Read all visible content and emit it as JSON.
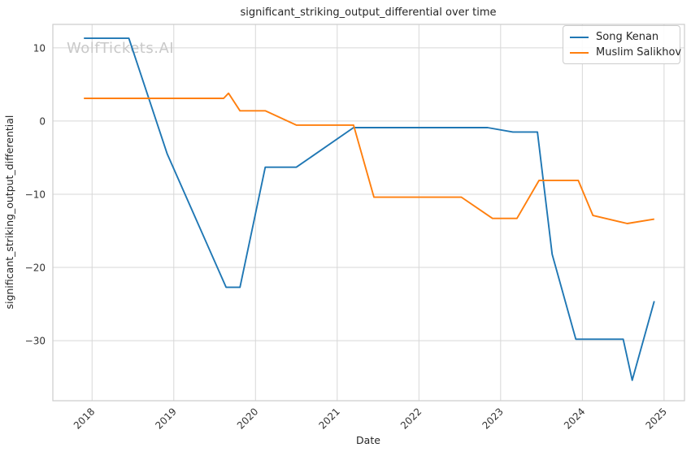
{
  "watermark": "WolfTickets.AI",
  "chart_data": {
    "type": "line",
    "title": "significant_striking_output_differential over time",
    "xlabel": "Date",
    "ylabel": "significant_striking_output_differential",
    "grid": true,
    "legend_position": "upper right",
    "xlim": [
      2017.52,
      2025.25
    ],
    "ylim": [
      -38.2,
      13.2
    ],
    "x_ticks": {
      "values": [
        2018,
        2019,
        2020,
        2021,
        2022,
        2023,
        2024,
        2025
      ],
      "labels": [
        "2018",
        "2019",
        "2020",
        "2021",
        "2022",
        "2023",
        "2024",
        "2025"
      ]
    },
    "y_ticks": {
      "values": [
        10,
        0,
        -10,
        -20,
        -30
      ],
      "labels": [
        "10",
        "0",
        "−10",
        "−20",
        "−30"
      ]
    },
    "series": [
      {
        "name": "Song Kenan",
        "color": "#1f77b4",
        "points": [
          [
            2017.9,
            11.3
          ],
          [
            2018.45,
            11.3
          ],
          [
            2018.92,
            -4.5
          ],
          [
            2019.64,
            -22.7
          ],
          [
            2019.81,
            -22.7
          ],
          [
            2020.12,
            -6.3
          ],
          [
            2020.5,
            -6.3
          ],
          [
            2021.2,
            -0.9
          ],
          [
            2022.84,
            -0.9
          ],
          [
            2023.15,
            -1.5
          ],
          [
            2023.45,
            -1.5
          ],
          [
            2023.63,
            -18.2
          ],
          [
            2023.92,
            -29.8
          ],
          [
            2024.5,
            -29.8
          ],
          [
            2024.61,
            -35.4
          ],
          [
            2024.88,
            -24.6
          ]
        ]
      },
      {
        "name": "Muslim Salikhov",
        "color": "#ff7f0e",
        "points": [
          [
            2017.9,
            3.1
          ],
          [
            2019.61,
            3.1
          ],
          [
            2019.67,
            3.8
          ],
          [
            2019.81,
            1.4
          ],
          [
            2020.12,
            1.4
          ],
          [
            2020.5,
            -0.55
          ],
          [
            2021.2,
            -0.55
          ],
          [
            2021.45,
            -10.4
          ],
          [
            2022.52,
            -10.4
          ],
          [
            2022.9,
            -13.3
          ],
          [
            2023.2,
            -13.3
          ],
          [
            2023.47,
            -8.1
          ],
          [
            2023.95,
            -8.1
          ],
          [
            2024.13,
            -12.9
          ],
          [
            2024.55,
            -14.0
          ],
          [
            2024.88,
            -13.4
          ]
        ]
      }
    ]
  }
}
